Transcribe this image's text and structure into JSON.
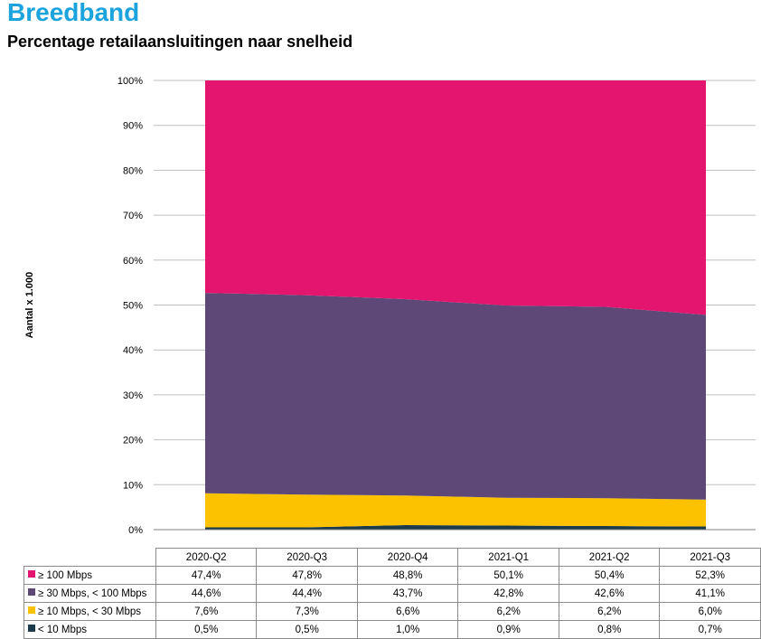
{
  "header": {
    "title": "Breedband",
    "subtitle": "Percentage retailaansluitingen naar snelheid"
  },
  "chart_data": {
    "type": "area",
    "stacked": true,
    "ylabel": "Aantal x 1.000",
    "ylim": [
      0,
      100
    ],
    "yticks": [
      "0%",
      "10%",
      "20%",
      "30%",
      "40%",
      "50%",
      "60%",
      "70%",
      "80%",
      "90%",
      "100%"
    ],
    "categories": [
      "2020-Q2",
      "2020-Q3",
      "2020-Q4",
      "2021-Q1",
      "2021-Q2",
      "2021-Q3"
    ],
    "grid": true,
    "legend": "table below chart",
    "series": [
      {
        "name": "< 10 Mbps",
        "color": "#1b3a4b",
        "values": [
          0.5,
          0.5,
          1.0,
          0.9,
          0.8,
          0.7
        ],
        "labels": [
          "0,5%",
          "0,5%",
          "1,0%",
          "0,9%",
          "0,8%",
          "0,7%"
        ]
      },
      {
        "name": "≥ 10 Mbps, < 30 Mbps",
        "color": "#fcc200",
        "values": [
          7.6,
          7.3,
          6.6,
          6.2,
          6.2,
          6.0
        ],
        "labels": [
          "7,6%",
          "7,3%",
          "6,6%",
          "6,2%",
          "6,2%",
          "6,0%"
        ]
      },
      {
        "name": "≥ 30 Mbps, < 100 Mbps",
        "color": "#5e4878",
        "values": [
          44.6,
          44.4,
          43.7,
          42.8,
          42.6,
          41.1
        ],
        "labels": [
          "44,6%",
          "44,4%",
          "43,7%",
          "42,8%",
          "42,6%",
          "41,1%"
        ]
      },
      {
        "name": "≥ 100 Mbps",
        "color": "#e3156f",
        "values": [
          47.4,
          47.8,
          48.8,
          50.1,
          50.4,
          52.3
        ],
        "labels": [
          "47,4%",
          "47,8%",
          "48,8%",
          "50,1%",
          "50,4%",
          "52,3%"
        ]
      }
    ],
    "table_order": [
      3,
      2,
      1,
      0
    ]
  }
}
